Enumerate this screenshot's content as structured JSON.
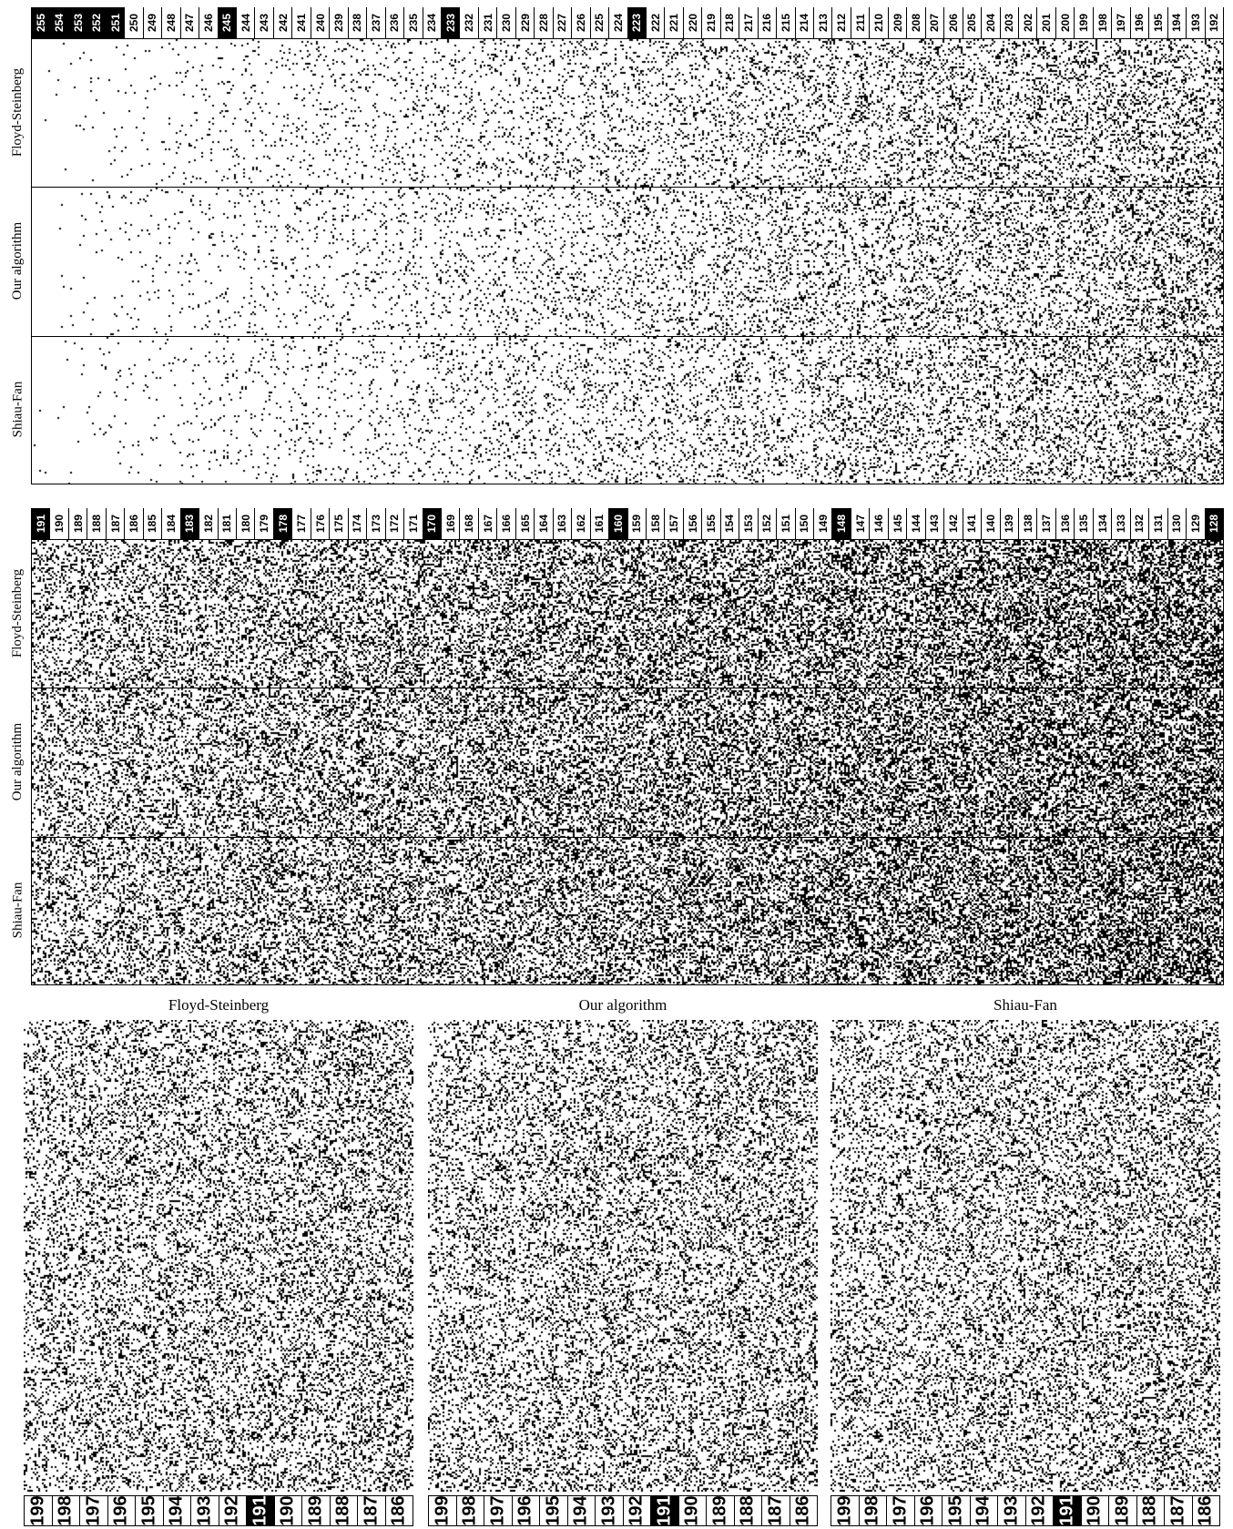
{
  "row_labels": [
    "Floyd-Steinberg",
    "Our algorithm",
    "Shiau-Fan"
  ],
  "top_panel": {
    "levels": [
      "255",
      "254",
      "253",
      "252",
      "251",
      "250",
      "249",
      "248",
      "247",
      "246",
      "245",
      "244",
      "243",
      "242",
      "241",
      "240",
      "239",
      "238",
      "237",
      "236",
      "235",
      "234",
      "233",
      "232",
      "231",
      "230",
      "229",
      "228",
      "227",
      "226",
      "225",
      "224",
      "223",
      "222",
      "221",
      "220",
      "219",
      "218",
      "217",
      "216",
      "215",
      "214",
      "213",
      "212",
      "211",
      "210",
      "209",
      "208",
      "207",
      "206",
      "205",
      "204",
      "203",
      "202",
      "201",
      "200",
      "199",
      "198",
      "197",
      "196",
      "195",
      "194",
      "193",
      "192"
    ],
    "highlighted": [
      "255",
      "254",
      "253",
      "252",
      "251",
      "245",
      "233",
      "223"
    ]
  },
  "middle_panel": {
    "levels": [
      "191",
      "190",
      "189",
      "188",
      "187",
      "186",
      "185",
      "184",
      "183",
      "182",
      "181",
      "180",
      "179",
      "178",
      "177",
      "176",
      "175",
      "174",
      "173",
      "172",
      "171",
      "170",
      "169",
      "168",
      "167",
      "166",
      "165",
      "164",
      "163",
      "162",
      "161",
      "160",
      "159",
      "158",
      "157",
      "156",
      "155",
      "154",
      "153",
      "152",
      "151",
      "150",
      "149",
      "148",
      "147",
      "146",
      "145",
      "144",
      "143",
      "142",
      "141",
      "140",
      "139",
      "138",
      "137",
      "136",
      "135",
      "134",
      "133",
      "132",
      "131",
      "130",
      "129",
      "128"
    ],
    "highlighted": [
      "191",
      "183",
      "178",
      "170",
      "160",
      "148",
      "128"
    ]
  },
  "bottom_titles": [
    "Floyd-Steinberg",
    "Our algorithm",
    "Shiau-Fan"
  ],
  "bottom_levels": [
    "199",
    "198",
    "197",
    "196",
    "195",
    "194",
    "193",
    "192",
    "191",
    "190",
    "189",
    "188",
    "187",
    "186"
  ],
  "bottom_highlighted": "191"
}
